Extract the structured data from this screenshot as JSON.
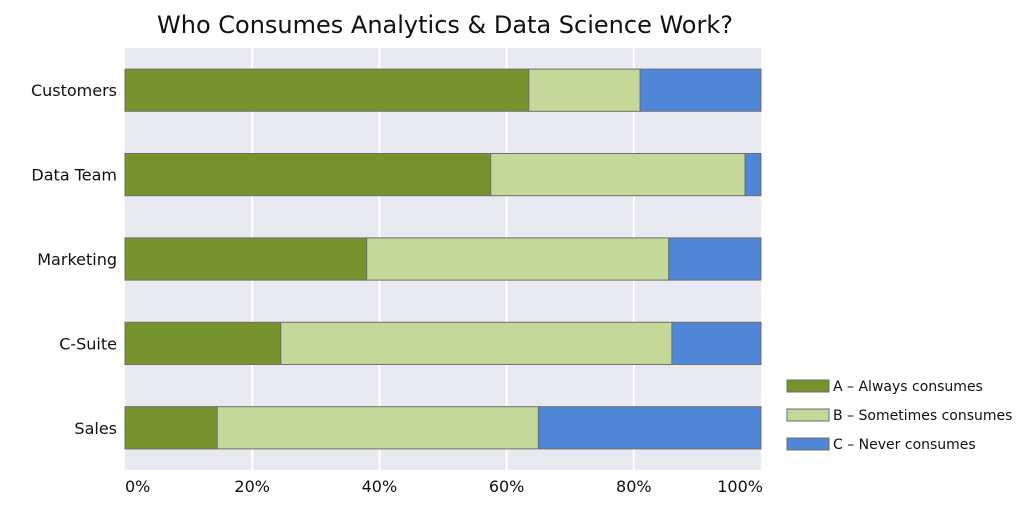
{
  "chart_data": {
    "type": "bar",
    "orientation": "horizontal",
    "stacked": true,
    "title": "Who Consumes Analytics & Data Science Work?",
    "categories": [
      "Customers",
      "Data Team",
      "Marketing",
      "C-Suite",
      "Sales"
    ],
    "series": [
      {
        "name": "A – Always consumes",
        "color": "#76932e",
        "values": [
          63.5,
          57.5,
          38,
          24.5,
          14.5
        ]
      },
      {
        "name": "B – Sometimes consumes",
        "color": "#c4d89a",
        "values": [
          17.5,
          40,
          47.5,
          61.5,
          50.5
        ]
      },
      {
        "name": "C – Never consumes",
        "color": "#4f87d6",
        "values": [
          19,
          2.5,
          14.5,
          14,
          35
        ]
      }
    ],
    "x_ticks": [
      "0%",
      "20%",
      "40%",
      "60%",
      "80%",
      "100%"
    ],
    "xlim": [
      0,
      100
    ],
    "grid": "vertical",
    "plot_background": "#e9e9f1",
    "legend_position": "bottom-right"
  }
}
